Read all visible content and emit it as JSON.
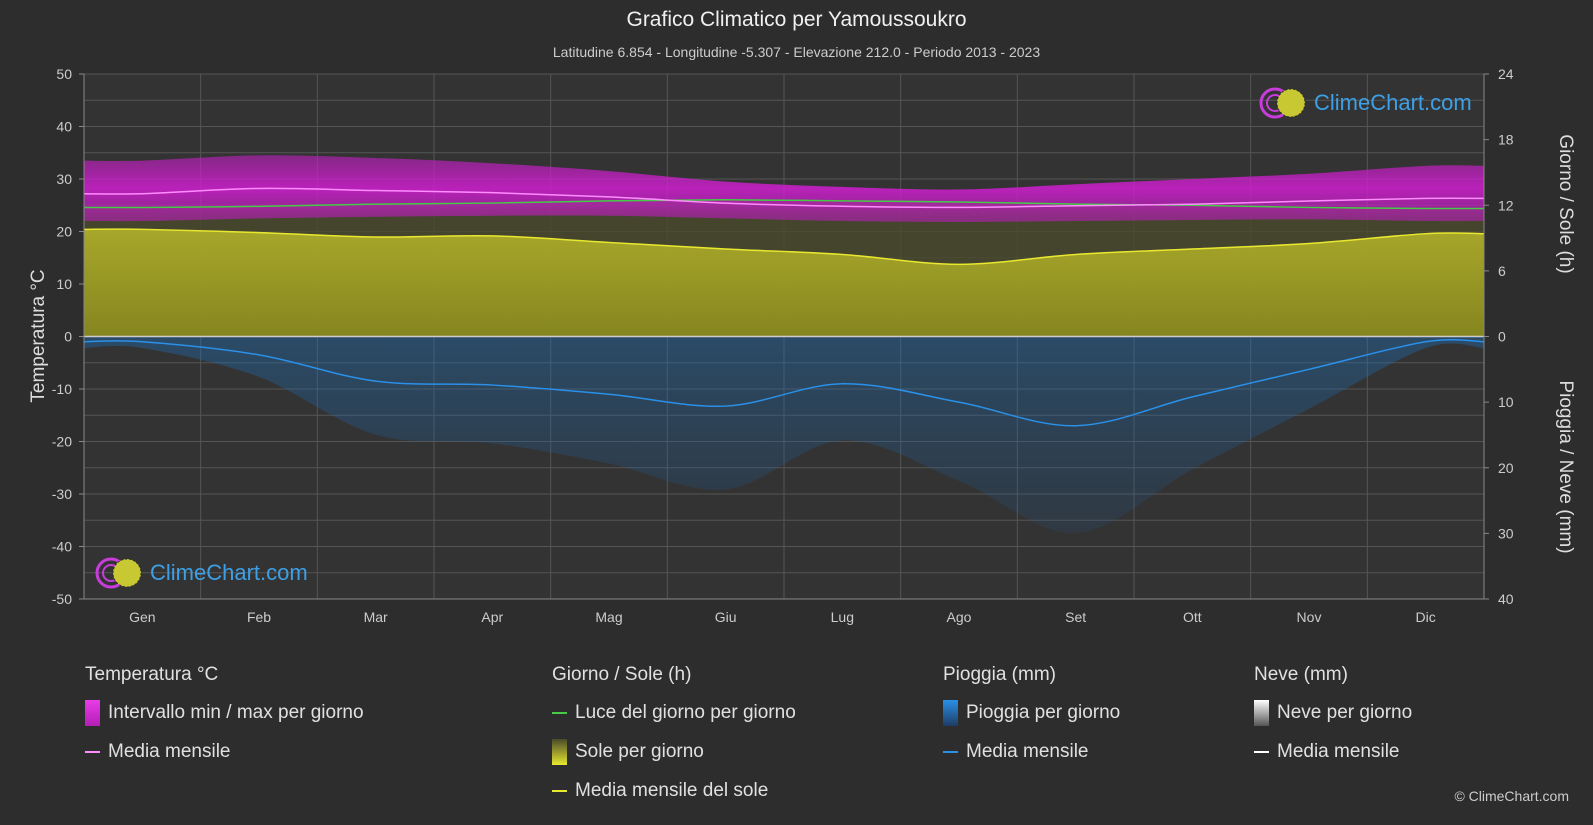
{
  "header": {
    "title": "Grafico Climatico per Yamoussoukro",
    "subtitle": "Latitudine 6.854 - Longitudine -5.307 - Elevazione 212.0 - Periodo 2013 - 2023"
  },
  "logo": {
    "text": "ClimeChart.com"
  },
  "copyright": "© ClimeChart.com",
  "colors": {
    "temp_band": "#d21ed2",
    "temp_mean": "#ff8cff",
    "daylight": "#44cc44",
    "sun_band": "#a0a020",
    "sun_mean": "#e8e830",
    "rain_band": "#1e6eb4",
    "rain_mean": "#2a90e8",
    "snow_mean": "#ffffff"
  },
  "legend": {
    "temperature": {
      "title": "Temperatura °C",
      "range_label": "Intervallo min / max per giorno",
      "mean_label": "Media mensile"
    },
    "sun": {
      "title": "Giorno / Sole (h)",
      "daylight_label": "Luce del giorno per giorno",
      "sun_label": "Sole per giorno",
      "sun_mean_label": "Media mensile del sole"
    },
    "rain": {
      "title": "Pioggia (mm)",
      "rain_label": "Pioggia per giorno",
      "mean_label": "Media mensile"
    },
    "snow": {
      "title": "Neve (mm)",
      "snow_label": "Neve per giorno",
      "mean_label": "Media mensile"
    }
  },
  "chart_data": {
    "type": "area",
    "categories": [
      "Gen",
      "Feb",
      "Mar",
      "Apr",
      "Mag",
      "Giu",
      "Lug",
      "Ago",
      "Set",
      "Ott",
      "Nov",
      "Dic"
    ],
    "left_axis": {
      "label": "Temperatura °C",
      "ylim": [
        -50,
        50
      ],
      "ticks": [
        50,
        40,
        30,
        20,
        10,
        0,
        -10,
        -20,
        -30,
        -40,
        -50
      ]
    },
    "right_axis_top": {
      "label": "Giorno / Sole (h)",
      "ylim": [
        0,
        24
      ],
      "ticks": [
        24,
        18,
        12,
        6,
        0
      ]
    },
    "right_axis_bottom": {
      "label": "Pioggia / Neve (mm)",
      "ylim": [
        0,
        40
      ],
      "ticks": [
        0,
        10,
        20,
        30,
        40
      ]
    },
    "grid": true,
    "series": [
      {
        "name": "Intervallo min / max per giorno",
        "type": "band",
        "min": [
          22.0,
          22.5,
          22.8,
          23.0,
          23.0,
          22.5,
          22.0,
          21.8,
          22.0,
          22.2,
          22.3,
          22.0
        ],
        "max": [
          33.5,
          34.5,
          34.0,
          33.0,
          31.5,
          29.5,
          28.5,
          28.0,
          29.0,
          30.0,
          31.0,
          32.5
        ]
      },
      {
        "name": "Media mensile",
        "type": "line",
        "axis": "temp",
        "values": [
          27.2,
          28.2,
          27.8,
          27.4,
          26.6,
          25.4,
          24.8,
          24.6,
          24.9,
          25.2,
          25.8,
          26.3
        ]
      },
      {
        "name": "Luce del giorno per giorno",
        "type": "line",
        "axis": "sun",
        "values": [
          11.8,
          11.9,
          12.1,
          12.2,
          12.4,
          12.5,
          12.4,
          12.3,
          12.1,
          12.0,
          11.8,
          11.7
        ]
      },
      {
        "name": "Media mensile del sole",
        "type": "line",
        "axis": "sun",
        "values": [
          9.8,
          9.5,
          9.1,
          9.2,
          8.6,
          8.0,
          7.5,
          6.6,
          7.5,
          8.0,
          8.5,
          9.4
        ]
      },
      {
        "name": "Media mensile",
        "type": "line",
        "axis": "rain",
        "values": [
          0.8,
          2.8,
          6.8,
          7.4,
          8.8,
          10.6,
          7.2,
          10.0,
          13.6,
          9.2,
          5.0,
          0.8
        ]
      }
    ]
  }
}
